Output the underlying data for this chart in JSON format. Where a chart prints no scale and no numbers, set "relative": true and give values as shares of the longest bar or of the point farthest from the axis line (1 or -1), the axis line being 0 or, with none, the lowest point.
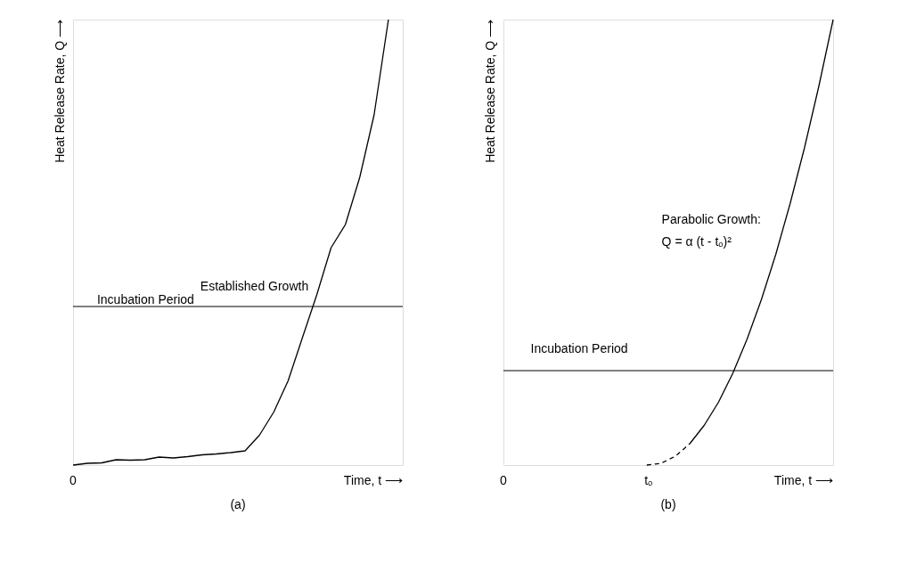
{
  "chart_data": [
    {
      "type": "line",
      "relative": true,
      "xlabel": "Time, t ⟶",
      "ylabel": "Heat Release Rate, Q ⟶",
      "marker": "none",
      "grid": false,
      "tick_labels": false,
      "categories": [
        null,
        null,
        null,
        null,
        null,
        null,
        null,
        null,
        null,
        null,
        null,
        null,
        null,
        null,
        null,
        null,
        null,
        null,
        null,
        null,
        null,
        null,
        null,
        null
      ],
      "series": [
        {
          "color": "#000000",
          "line_style": "solid",
          "values": [
            0,
            0.004,
            0.005,
            0.012,
            0.011,
            0.012,
            0.018,
            0.016,
            0.019,
            0.023,
            0.025,
            0.028,
            0.032,
            0.067,
            0.119,
            0.189,
            0.286,
            0.382,
            0.488,
            0.54,
            0.646,
            0.786,
            1.0,
            null
          ]
        }
      ],
      "ref_lines": [
        {
          "axis": "y",
          "value": 0.356,
          "label": null,
          "color": "#000000"
        }
      ],
      "annotations": [
        "Incubation Period",
        "Established Growth",
        "0",
        "(a)"
      ]
    },
    {
      "type": "line",
      "relative": true,
      "xlabel": "Time, t ⟶",
      "ylabel": "Heat Release Rate, Q ⟶",
      "marker": "none",
      "grid": false,
      "tick_labels": false,
      "categories": [
        null,
        null,
        null,
        null,
        null,
        null,
        null,
        null,
        null,
        null,
        null,
        null,
        null,
        null,
        null,
        null,
        null,
        null,
        null,
        null,
        null,
        null,
        null,
        null
      ],
      "series": [
        {
          "color": "#000000",
          "line_style": "dashed",
          "values": [
            null,
            null,
            null,
            null,
            null,
            null,
            null,
            null,
            null,
            null,
            0,
            0.004,
            0.02,
            0.048,
            null,
            null,
            null,
            null,
            null,
            null,
            null,
            null,
            null,
            null
          ]
        },
        {
          "color": "#000000",
          "line_style": "solid",
          "values": [
            null,
            null,
            null,
            null,
            null,
            null,
            null,
            null,
            null,
            null,
            null,
            null,
            null,
            0.048,
            0.089,
            0.141,
            0.206,
            0.283,
            0.372,
            0.473,
            0.587,
            0.712,
            0.85,
            1.0
          ]
        }
      ],
      "ref_lines": [
        {
          "axis": "y",
          "value": 0.212,
          "label": null,
          "color": "#000000"
        }
      ],
      "annotations": [
        "Parabolic Growth:",
        "Q = α (t - tₒ)²",
        "Incubation Period",
        "0",
        "tₒ",
        "(b)"
      ]
    }
  ]
}
